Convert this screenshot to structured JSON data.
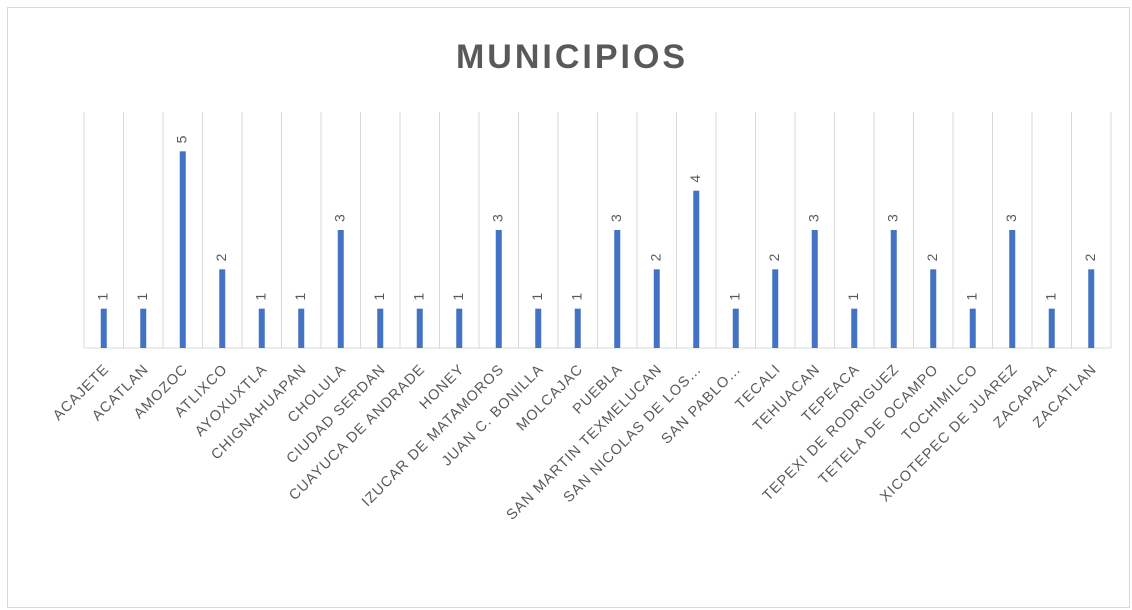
{
  "chart_data": {
    "type": "bar",
    "title": "MUNICIPIOS",
    "categories": [
      "ACAJETE",
      "ACATLAN",
      "AMOZOC",
      "ATLIXCO",
      "AYOXUXTLA",
      "CHIGNAHUAPAN",
      "CHOLULA",
      "CIUDAD SERDAN",
      "CUAYUCA DE ANDRADE",
      "HONEY",
      "IZUCAR DE MATAMOROS",
      "JUAN C. BONILLA",
      "MOLCAJAC",
      "PUEBLA",
      "SAN MARTIN TEXMELUCAN",
      "SAN NICOLAS DE LOS…",
      "SAN PABLO…",
      "TECALI",
      "TEHUACAN",
      "TEPEACA",
      "TEPEXI DE RODRIGUEZ",
      "TETELA DE OCAMPO",
      "TOCHIMILCO",
      "XICOTEPEC DE JUAREZ",
      "ZACAPALA",
      "ZACATLAN"
    ],
    "values": [
      1,
      1,
      5,
      2,
      1,
      1,
      3,
      1,
      1,
      1,
      3,
      1,
      1,
      3,
      2,
      4,
      1,
      2,
      3,
      1,
      3,
      2,
      1,
      3,
      1,
      2
    ],
    "color": "#4472c4",
    "ylim": [
      0,
      6
    ]
  }
}
